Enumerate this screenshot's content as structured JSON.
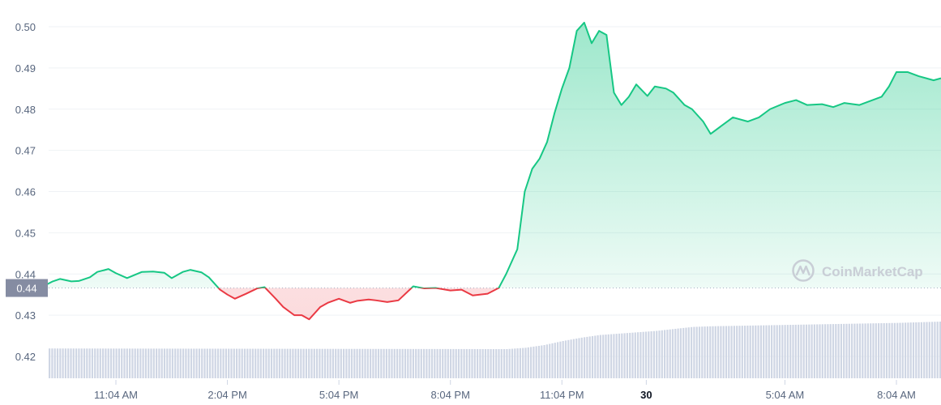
{
  "watermark": {
    "text": "CoinMarketCap",
    "icon": "coinmarketcap-logo-icon"
  },
  "colors": {
    "up": "#16c784",
    "down": "#ea3943",
    "volume": "#cfd6e4",
    "grid": "#eff2f5",
    "current_label_bg": "#858ca2"
  },
  "chart_data": {
    "type": "line",
    "y_ticks": [
      "0.50",
      "0.49",
      "0.48",
      "0.47",
      "0.46",
      "0.45",
      "0.44",
      "0.43",
      "0.42"
    ],
    "ylim": [
      0.418,
      0.503
    ],
    "x_ticks": [
      {
        "label": "11:04 AM",
        "t": 2
      },
      {
        "label": "2:04 PM",
        "t": 5
      },
      {
        "label": "5:04 PM",
        "t": 8
      },
      {
        "label": "8:04 PM",
        "t": 11
      },
      {
        "label": "11:04 PM",
        "t": 14
      },
      {
        "label": "30",
        "t": 16.27,
        "bold": true
      },
      {
        "label": "5:04 AM",
        "t": 20
      },
      {
        "label": "8:04 AM",
        "t": 23
      }
    ],
    "xlim": [
      -0.35,
      24.2
    ],
    "baseline": 0.4366,
    "current_price_label": "0.44",
    "series": [
      {
        "x": [
          -0.35,
          0.0,
          0.3,
          0.5,
          0.8,
          1.0,
          1.3,
          1.5,
          1.8,
          2.0,
          2.3,
          2.7,
          3.0,
          3.3,
          3.5,
          3.8,
          4.0,
          4.3,
          4.5,
          4.8,
          5.0,
          5.2,
          5.5,
          5.8,
          6.0,
          6.3,
          6.5,
          6.8,
          7.0,
          7.2,
          7.5,
          7.7,
          8.0,
          8.3,
          8.5,
          8.8,
          9.0,
          9.3,
          9.6,
          10.0,
          10.3,
          10.6,
          11.0,
          11.3,
          11.6,
          12.0,
          12.3,
          12.5,
          12.8,
          13.0,
          13.2,
          13.4,
          13.6,
          13.8,
          14.0,
          14.2,
          14.4,
          14.6,
          14.8,
          15.0,
          15.2,
          15.4,
          15.6,
          15.8,
          16.0,
          16.3,
          16.5,
          16.8,
          17.0,
          17.3,
          17.5,
          17.8,
          18.0,
          18.3,
          18.6,
          19.0,
          19.3,
          19.6,
          20.0,
          20.3,
          20.6,
          21.0,
          21.3,
          21.6,
          22.0,
          22.3,
          22.6,
          22.8,
          23.0,
          23.3,
          23.6,
          24.0,
          24.2
        ],
        "y": [
          0.4368,
          0.4368,
          0.4382,
          0.4388,
          0.4382,
          0.4383,
          0.4392,
          0.4405,
          0.4412,
          0.4402,
          0.439,
          0.4405,
          0.4406,
          0.4403,
          0.439,
          0.4405,
          0.441,
          0.4404,
          0.4392,
          0.4362,
          0.435,
          0.434,
          0.4352,
          0.4365,
          0.4368,
          0.434,
          0.432,
          0.43,
          0.43,
          0.429,
          0.432,
          0.433,
          0.434,
          0.433,
          0.4335,
          0.4338,
          0.4336,
          0.4332,
          0.4336,
          0.437,
          0.4365,
          0.4366,
          0.436,
          0.4362,
          0.4348,
          0.4352,
          0.4366,
          0.44,
          0.446,
          0.46,
          0.4655,
          0.468,
          0.472,
          0.479,
          0.485,
          0.49,
          0.499,
          0.501,
          0.496,
          0.499,
          0.498,
          0.484,
          0.481,
          0.483,
          0.486,
          0.4832,
          0.4855,
          0.485,
          0.484,
          0.481,
          0.48,
          0.477,
          0.474,
          0.476,
          0.478,
          0.477,
          0.478,
          0.48,
          0.4815,
          0.4822,
          0.481,
          0.4812,
          0.4805,
          0.4815,
          0.481,
          0.482,
          0.483,
          0.4855,
          0.489,
          0.489,
          0.488,
          0.487,
          0.4875
        ]
      }
    ],
    "volume": {
      "x": [
        -0.35,
        12.5,
        13.0,
        13.5,
        14.0,
        14.5,
        15.0,
        15.5,
        16.0,
        16.5,
        17.0,
        17.5,
        18.0,
        19.0,
        20.0,
        21.0,
        22.0,
        23.0,
        24.2
      ],
      "level": [
        0.3,
        0.29,
        0.31,
        0.35,
        0.41,
        0.46,
        0.5,
        0.52,
        0.54,
        0.56,
        0.59,
        0.62,
        0.63,
        0.64,
        0.65,
        0.66,
        0.67,
        0.68,
        0.7
      ]
    }
  }
}
